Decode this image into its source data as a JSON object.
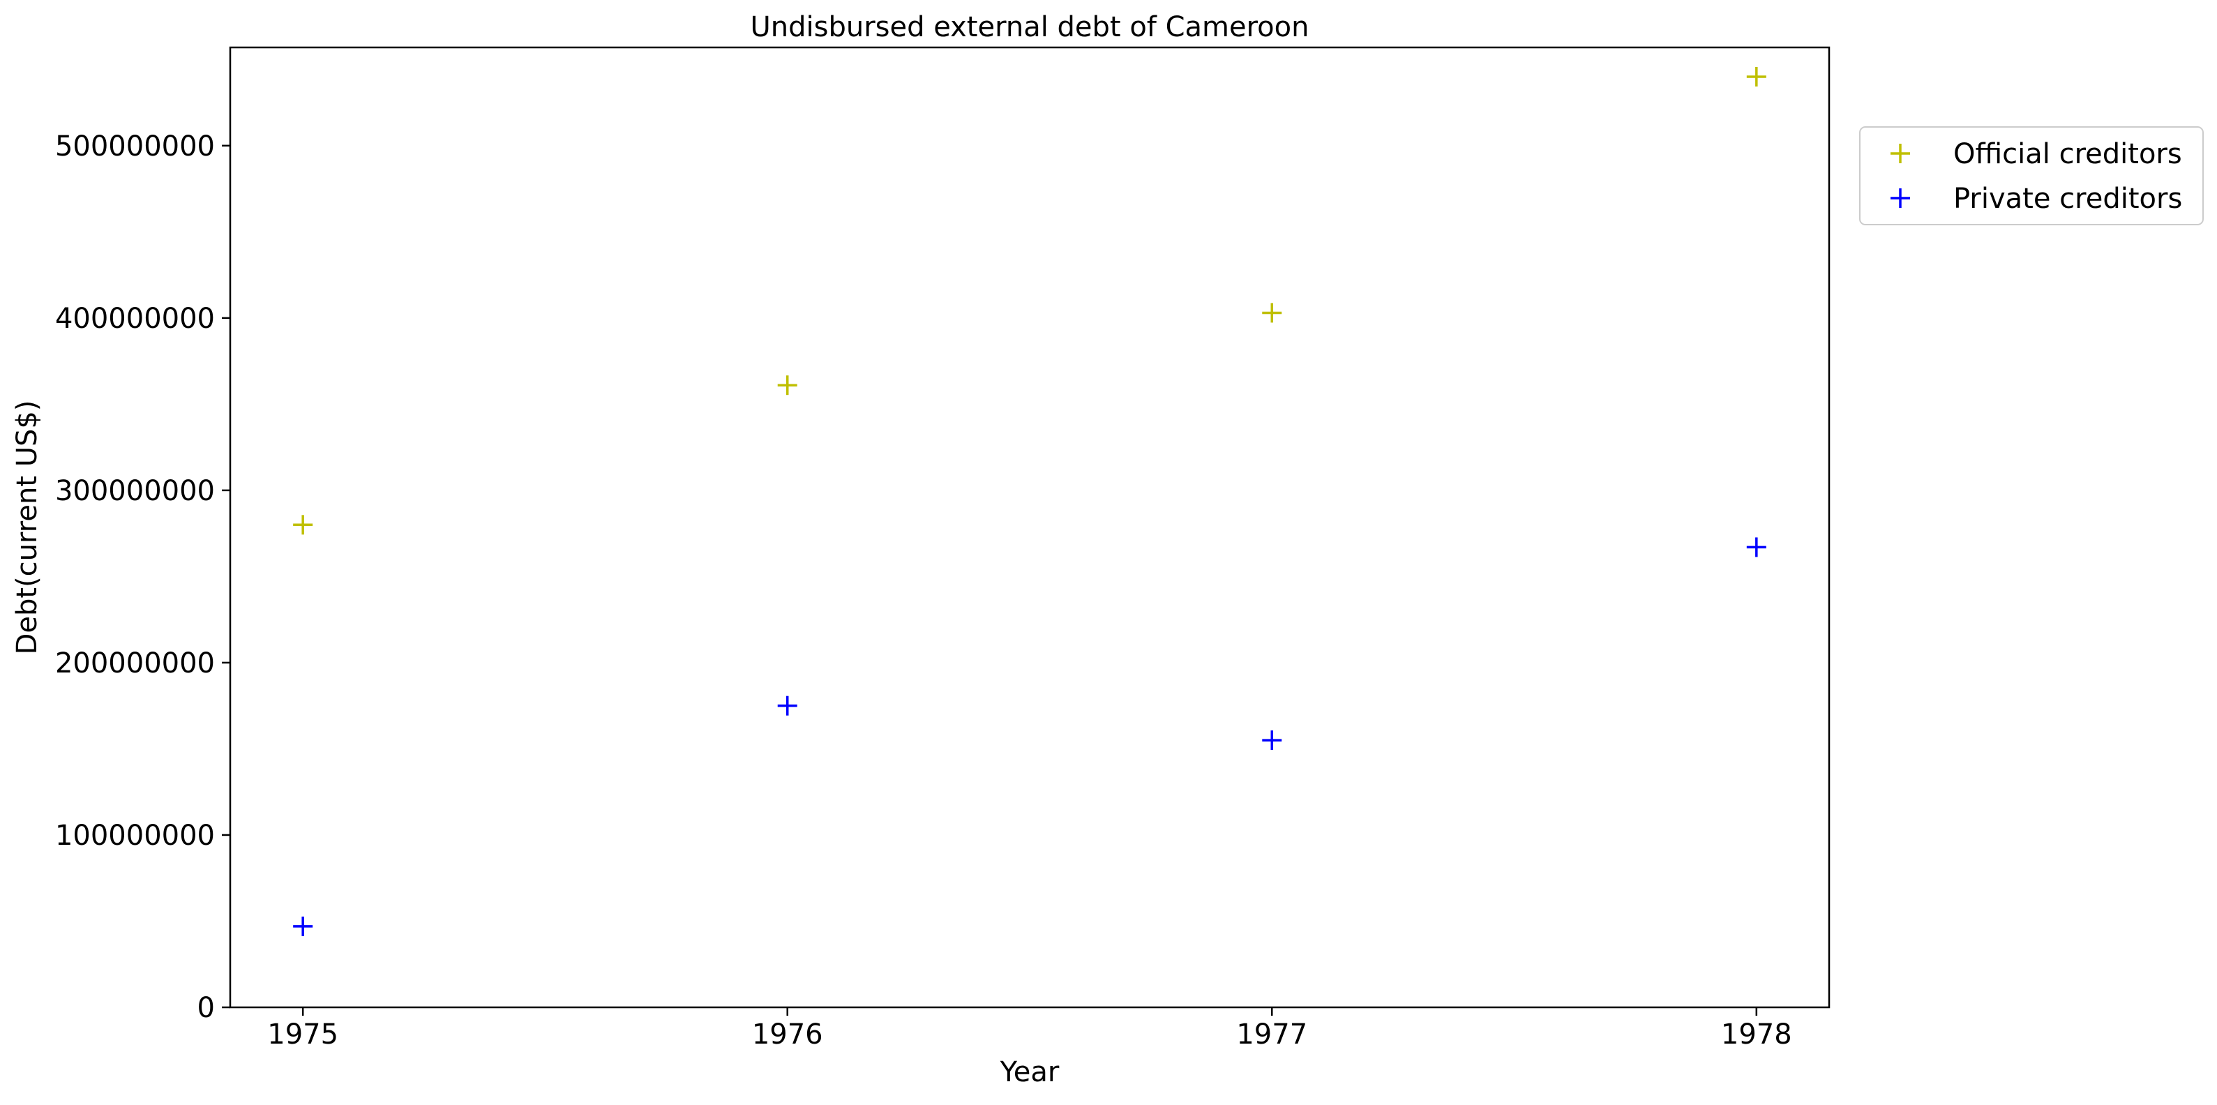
{
  "chart_data": {
    "type": "scatter",
    "title": "Undisbursed external debt of Cameroon",
    "xlabel": "Year",
    "ylabel": "Debt(current US$)",
    "x": [
      1975,
      1976,
      1977,
      1978
    ],
    "x_tick_labels": [
      "1975",
      "1976",
      "1977",
      "1978"
    ],
    "xlim": [
      1974.85,
      1978.15
    ],
    "ylim": [
      0,
      557000000
    ],
    "y_ticks": [
      0,
      100000000,
      200000000,
      300000000,
      400000000,
      500000000
    ],
    "y_tick_labels": [
      "0",
      "100000000",
      "200000000",
      "300000000",
      "400000000",
      "500000000"
    ],
    "grid": false,
    "marker": "plus",
    "legend_position": "outside-top-right",
    "series": [
      {
        "name": "Official creditors",
        "color": "#bfbf00",
        "values": [
          280000000,
          361000000,
          403000000,
          540000000
        ]
      },
      {
        "name": "Private creditors",
        "color": "#0000ff",
        "values": [
          47000000,
          175000000,
          155000000,
          267000000
        ]
      }
    ]
  }
}
